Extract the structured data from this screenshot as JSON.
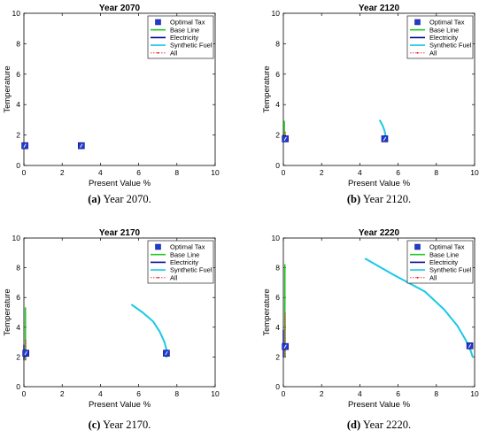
{
  "colors": {
    "optimal_tax_fill": "#1f3bd6",
    "base_line": "#22cc22",
    "electricity": "#0a0a8a",
    "synthetic_fuel": "#19c9e6",
    "all": "#e02020",
    "axis": "#000000"
  },
  "chart_data": [
    {
      "type": "line",
      "title": "Year 2070",
      "caption_letter": "(a)",
      "caption_text": " Year 2070.",
      "xlabel": "Present Value %",
      "ylabel": "Temperature",
      "xlim": [
        0,
        10
      ],
      "ylim": [
        0,
        10
      ],
      "xticks": [
        "0",
        "2",
        "4",
        "6",
        "8",
        "10"
      ],
      "yticks": [
        "0",
        "2",
        "4",
        "6",
        "8",
        "10"
      ],
      "grid": false,
      "legend_position": "top-right",
      "legend": [
        "Optimal Tax",
        "Base Line",
        "Electricity",
        "Synthetic Fuel",
        "All"
      ],
      "optimal_tax": [
        [
          3.0,
          1.3
        ],
        [
          0.05,
          1.3
        ]
      ],
      "base_line": {
        "x": [
          0.02,
          0.02
        ],
        "y": [
          1.2,
          1.45
        ]
      },
      "electricity": {
        "x": [
          0.0,
          0.0
        ],
        "y": [
          1.2,
          1.4
        ]
      },
      "synthetic_fuel": {
        "x": [
          2.95,
          3.05
        ],
        "y": [
          1.25,
          1.38
        ]
      },
      "all": {
        "x": [
          0.04,
          0.04
        ],
        "y": [
          1.25,
          1.4
        ]
      }
    },
    {
      "type": "line",
      "title": "Year 2120",
      "caption_letter": "(b)",
      "caption_text": " Year 2120.",
      "xlabel": "Present Value %",
      "ylabel": "Temperature",
      "xlim": [
        0,
        10
      ],
      "ylim": [
        0,
        10
      ],
      "xticks": [
        "0",
        "2",
        "4",
        "6",
        "8",
        "10"
      ],
      "yticks": [
        "0",
        "2",
        "4",
        "6",
        "8",
        "10"
      ],
      "grid": false,
      "legend_position": "top-right",
      "legend": [
        "Optimal Tax",
        "Base Line",
        "Electricity",
        "Synthetic Fuel",
        "All"
      ],
      "optimal_tax": [
        [
          5.3,
          1.75
        ],
        [
          0.1,
          1.75
        ]
      ],
      "base_line": {
        "x": [
          0.05,
          0.05
        ],
        "y": [
          1.6,
          2.9
        ]
      },
      "electricity": {
        "x": [
          0.0,
          0.0
        ],
        "y": [
          1.6,
          2.0
        ]
      },
      "synthetic_fuel": {
        "x": [
          5.05,
          5.2,
          5.3,
          5.35,
          5.32
        ],
        "y": [
          2.95,
          2.6,
          2.25,
          1.9,
          1.6
        ]
      },
      "all": {
        "x": [
          0.1,
          0.1
        ],
        "y": [
          1.6,
          2.2
        ]
      }
    },
    {
      "type": "line",
      "title": "Year 2170",
      "caption_letter": "(c)",
      "caption_text": " Year 2170.",
      "xlabel": "Present Value %",
      "ylabel": "Temperature",
      "xlim": [
        0,
        10
      ],
      "ylim": [
        0,
        10
      ],
      "xticks": [
        "0",
        "2",
        "4",
        "6",
        "8",
        "10"
      ],
      "yticks": [
        "0",
        "2",
        "4",
        "6",
        "8",
        "10"
      ],
      "grid": false,
      "legend_position": "top-right",
      "legend": [
        "Optimal Tax",
        "Base Line",
        "Electricity",
        "Synthetic Fuel",
        "All"
      ],
      "optimal_tax": [
        [
          7.45,
          2.25
        ],
        [
          0.1,
          2.25
        ]
      ],
      "base_line": {
        "x": [
          0.08,
          0.08
        ],
        "y": [
          1.8,
          5.3
        ]
      },
      "electricity": {
        "x": [
          0.0,
          0.0
        ],
        "y": [
          1.8,
          2.8
        ]
      },
      "synthetic_fuel": {
        "x": [
          5.65,
          6.2,
          6.75,
          7.1,
          7.35,
          7.45,
          7.45
        ],
        "y": [
          5.5,
          5.0,
          4.4,
          3.7,
          3.0,
          2.5,
          2.0
        ]
      },
      "all": {
        "x": [
          0.1,
          0.1
        ],
        "y": [
          1.8,
          3.2
        ]
      }
    },
    {
      "type": "line",
      "title": "Year 2220",
      "caption_letter": "(d)",
      "caption_text": " Year 2220.",
      "xlabel": "Present Value %",
      "ylabel": "Temperature",
      "xlim": [
        0,
        10
      ],
      "ylim": [
        0,
        10
      ],
      "xticks": [
        "0",
        "2",
        "4",
        "6",
        "8",
        "10"
      ],
      "yticks": [
        "0",
        "2",
        "4",
        "6",
        "8",
        "10"
      ],
      "grid": false,
      "legend_position": "top-right",
      "legend": [
        "Optimal Tax",
        "Base Line",
        "Electricity",
        "Synthetic Fuel",
        "All"
      ],
      "optimal_tax": [
        [
          9.75,
          2.75
        ],
        [
          0.1,
          2.7
        ]
      ],
      "base_line": {
        "x": [
          0.08,
          0.08
        ],
        "y": [
          2.0,
          8.2
        ]
      },
      "electricity": {
        "x": [
          0.0,
          0.0
        ],
        "y": [
          2.0,
          3.8
        ]
      },
      "synthetic_fuel": {
        "x": [
          4.3,
          5.8,
          7.4,
          8.4,
          9.1,
          9.55,
          9.8,
          9.9
        ],
        "y": [
          8.6,
          7.5,
          6.4,
          5.2,
          4.1,
          3.1,
          2.4,
          2.0
        ]
      },
      "all": {
        "x": [
          0.1,
          0.1
        ],
        "y": [
          2.0,
          5.0
        ]
      }
    }
  ]
}
